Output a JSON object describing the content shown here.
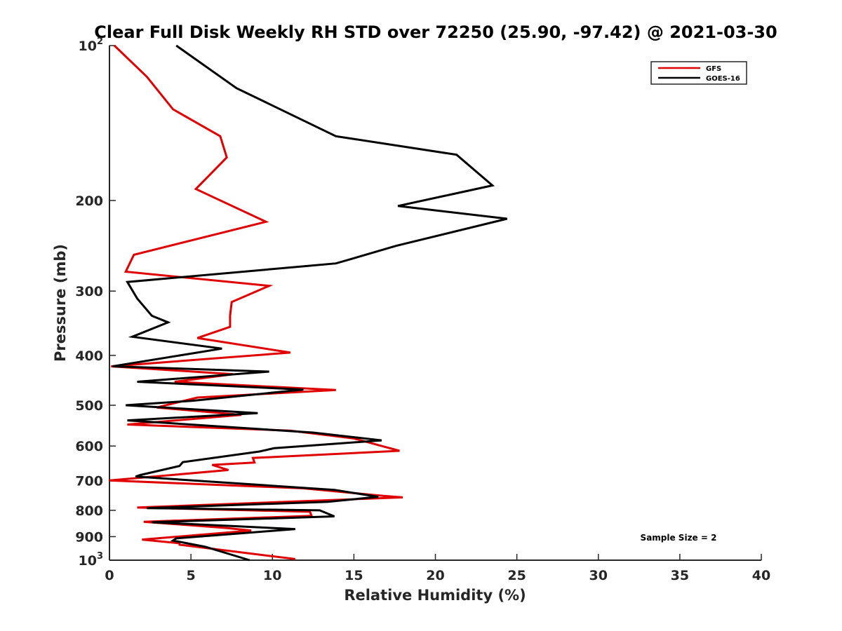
{
  "chart_data": {
    "type": "line",
    "title": "Clear Full Disk Weekly RH STD over 72250 (25.90, -97.42) @ 2021-03-30",
    "xlabel": "Relative Humidity (%)",
    "ylabel": "Pressure (mb)",
    "xlim": [
      0,
      40
    ],
    "ylim": [
      100,
      1000
    ],
    "y_scale": "log",
    "y_reversed": true,
    "grid": false,
    "legend_position": "top-right",
    "x_ticks": [
      "0",
      "5",
      "10",
      "15",
      "20",
      "25",
      "30",
      "35",
      "40"
    ],
    "x_tick_values": [
      0,
      5,
      10,
      15,
      20,
      25,
      30,
      35,
      40
    ],
    "y_ticks": [
      {
        "value": 100,
        "base": "10",
        "exp": "2"
      },
      {
        "value": 200,
        "label": "200"
      },
      {
        "value": 300,
        "label": "300"
      },
      {
        "value": 400,
        "label": "400"
      },
      {
        "value": 500,
        "label": "500"
      },
      {
        "value": 600,
        "label": "600"
      },
      {
        "value": 700,
        "label": "700"
      },
      {
        "value": 800,
        "label": "800"
      },
      {
        "value": 900,
        "label": "900"
      },
      {
        "value": 1000,
        "base": "10",
        "exp": "3"
      }
    ],
    "annotation": "Sample Size = 2",
    "series": [
      {
        "name": "GFS",
        "color": "#e00000",
        "points": [
          [
            0.3,
            100
          ],
          [
            2.3,
            115
          ],
          [
            3.9,
            133
          ],
          [
            6.8,
            150
          ],
          [
            7.2,
            165
          ],
          [
            5.3,
            190
          ],
          [
            9.6,
            220
          ],
          [
            1.5,
            255
          ],
          [
            1.0,
            275
          ],
          [
            9.8,
            293
          ],
          [
            7.5,
            315
          ],
          [
            7.4,
            335
          ],
          [
            7.4,
            352
          ],
          [
            5.4,
            370
          ],
          [
            11.1,
            395
          ],
          [
            0.1,
            420
          ],
          [
            7.6,
            435
          ],
          [
            4.0,
            450
          ],
          [
            13.9,
            467
          ],
          [
            5.4,
            483
          ],
          [
            2.9,
            505
          ],
          [
            8.1,
            522
          ],
          [
            1.1,
            545
          ],
          [
            11.1,
            560
          ],
          [
            15.0,
            580
          ],
          [
            17.8,
            613
          ],
          [
            8.8,
            633
          ],
          [
            8.9,
            646
          ],
          [
            6.3,
            653
          ],
          [
            7.3,
            668
          ],
          [
            0.0,
            700
          ],
          [
            11.9,
            725
          ],
          [
            16.8,
            750
          ],
          [
            18.0,
            755
          ],
          [
            1.7,
            790
          ],
          [
            12.3,
            805
          ],
          [
            12.4,
            820
          ],
          [
            2.1,
            842
          ],
          [
            7.2,
            866
          ],
          [
            8.7,
            876
          ],
          [
            2.0,
            912
          ],
          [
            4.3,
            927
          ],
          [
            4.3,
            933
          ],
          [
            11.4,
            995
          ]
        ]
      },
      {
        "name": "GOES-16",
        "color": "#000000",
        "points": [
          [
            4.1,
            100
          ],
          [
            7.8,
            121
          ],
          [
            13.9,
            150
          ],
          [
            21.3,
            163
          ],
          [
            23.5,
            187
          ],
          [
            17.7,
            205
          ],
          [
            24.4,
            217
          ],
          [
            17.6,
            245
          ],
          [
            13.9,
            265
          ],
          [
            1.1,
            288
          ],
          [
            1.7,
            310
          ],
          [
            2.6,
            335
          ],
          [
            3.6,
            345
          ],
          [
            1.4,
            368
          ],
          [
            6.9,
            388
          ],
          [
            0.2,
            420
          ],
          [
            9.8,
            430
          ],
          [
            1.7,
            450
          ],
          [
            11.9,
            466
          ],
          [
            5.1,
            490
          ],
          [
            1.0,
            500
          ],
          [
            9.1,
            518
          ],
          [
            1.1,
            535
          ],
          [
            12.5,
            565
          ],
          [
            16.7,
            585
          ],
          [
            10.1,
            606
          ],
          [
            9.2,
            615
          ],
          [
            4.5,
            645
          ],
          [
            4.3,
            656
          ],
          [
            1.9,
            683
          ],
          [
            1.6,
            688
          ],
          [
            13.8,
            730
          ],
          [
            16.5,
            753
          ],
          [
            13.4,
            770
          ],
          [
            2.3,
            792
          ],
          [
            12.9,
            800
          ],
          [
            13.8,
            822
          ],
          [
            2.6,
            844
          ],
          [
            11.4,
            870
          ],
          [
            4.1,
            907
          ],
          [
            3.9,
            916
          ],
          [
            5.9,
            942
          ],
          [
            8.6,
            1000
          ]
        ]
      }
    ]
  }
}
